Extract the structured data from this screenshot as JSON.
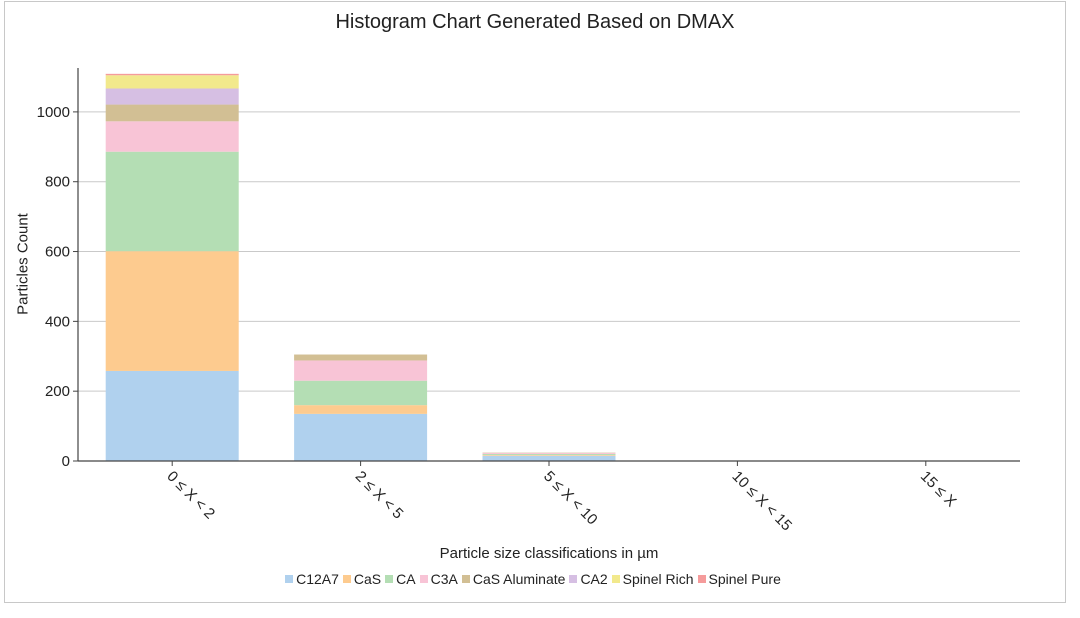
{
  "chart_data": {
    "type": "bar",
    "stacked": true,
    "title": "Histogram Chart Generated Based on DMAX",
    "xlabel": "Particle size classifications in µm",
    "ylabel": "Particles Count",
    "ylim": [
      0,
      1120
    ],
    "yticks": [
      0,
      200,
      400,
      600,
      800,
      1000
    ],
    "grid": true,
    "legend_position": "bottom",
    "categories": [
      "0 ≤ X < 2",
      "2 ≤ X < 5",
      "5 ≤ X < 10",
      "10 ≤ X < 15",
      "15 ≤ X"
    ],
    "series": [
      {
        "name": "C12A7",
        "color": "#b0d1ee",
        "values": [
          258,
          135,
          15,
          0,
          0
        ]
      },
      {
        "name": "CaS",
        "color": "#fdcb8f",
        "values": [
          343,
          25,
          2,
          0,
          0
        ]
      },
      {
        "name": "CA",
        "color": "#b4deb4",
        "values": [
          285,
          70,
          3,
          0,
          0
        ]
      },
      {
        "name": "C3A",
        "color": "#f8c4d6",
        "values": [
          87,
          58,
          3,
          0,
          0
        ]
      },
      {
        "name": "CaS Aluminate",
        "color": "#d2bf94",
        "values": [
          48,
          17,
          1,
          0,
          0
        ]
      },
      {
        "name": "CA2",
        "color": "#d6bfe3",
        "values": [
          46,
          0,
          0,
          0,
          0
        ]
      },
      {
        "name": "Spinel Rich",
        "color": "#f2e98c",
        "values": [
          38,
          0,
          0,
          0,
          0
        ]
      },
      {
        "name": "Spinel Pure",
        "color": "#f59b9b",
        "values": [
          4,
          0,
          0,
          0,
          0
        ]
      }
    ]
  }
}
